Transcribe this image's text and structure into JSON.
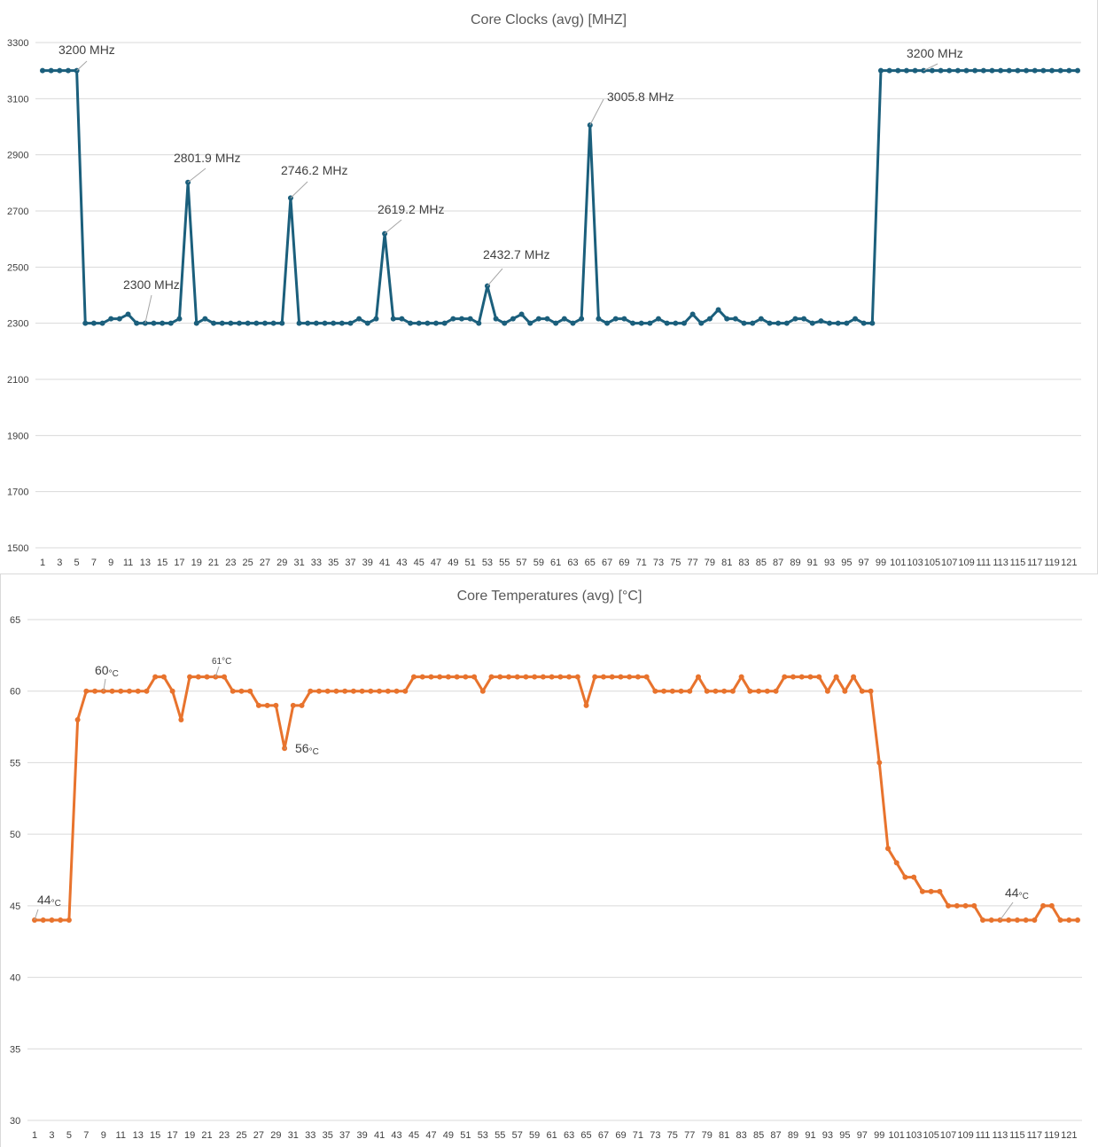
{
  "colors": {
    "clocks": "#1b5f7c",
    "temps": "#e8732d"
  },
  "chart_data": [
    {
      "type": "line",
      "title": "Core Clocks (avg) [MHZ]",
      "xlabel": "",
      "ylabel": "",
      "ylim": [
        1500,
        3300
      ],
      "yticks": [
        "3300",
        "3100",
        "2900",
        "2700",
        "2500",
        "2300",
        "2100",
        "1900",
        "1700",
        "1500"
      ],
      "x_tick_labels": [
        "1",
        "3",
        "5",
        "7",
        "9",
        "11",
        "13",
        "15",
        "17",
        "19",
        "21",
        "23",
        "25",
        "27",
        "29",
        "31",
        "33",
        "35",
        "37",
        "39",
        "41",
        "43",
        "45",
        "47",
        "49",
        "51",
        "53",
        "55",
        "57",
        "59",
        "61",
        "63",
        "65",
        "67",
        "69",
        "71",
        "73",
        "75",
        "77",
        "79",
        "81",
        "83",
        "85",
        "87",
        "89",
        "91",
        "93",
        "95",
        "97",
        "99",
        "101",
        "103",
        "105",
        "107",
        "109",
        "111",
        "113",
        "115",
        "117",
        "119",
        "121"
      ],
      "x": [
        1,
        2,
        3,
        4,
        5,
        6,
        7,
        8,
        9,
        10,
        11,
        12,
        13,
        14,
        15,
        16,
        17,
        18,
        19,
        20,
        21,
        22,
        23,
        24,
        25,
        26,
        27,
        28,
        29,
        30,
        31,
        32,
        33,
        34,
        35,
        36,
        37,
        38,
        39,
        40,
        41,
        42,
        43,
        44,
        45,
        46,
        47,
        48,
        49,
        50,
        51,
        52,
        53,
        54,
        55,
        56,
        57,
        58,
        59,
        60,
        61,
        62,
        63,
        64,
        65,
        66,
        67,
        68,
        69,
        70,
        71,
        72,
        73,
        74,
        75,
        76,
        77,
        78,
        79,
        80,
        81,
        82,
        83,
        84,
        85,
        86,
        87,
        88,
        89,
        90,
        91,
        92,
        93,
        94,
        95,
        96,
        97,
        98,
        99,
        100,
        101,
        102,
        103,
        104,
        105,
        106,
        107,
        108,
        109,
        110,
        111,
        112,
        113,
        114,
        115,
        116,
        117,
        118,
        119,
        120,
        121,
        122
      ],
      "series": [
        {
          "values": [
            3200,
            3200,
            3200,
            3200,
            3200,
            2300,
            2300,
            2300,
            2316,
            2316,
            2332,
            2300,
            2300,
            2300,
            2300,
            2300,
            2316,
            2801.9,
            2300,
            2316,
            2300,
            2300,
            2300,
            2300,
            2300,
            2300,
            2300,
            2300,
            2300,
            2746.2,
            2300,
            2300,
            2300,
            2300,
            2300,
            2300,
            2300,
            2316,
            2300,
            2316,
            2619.2,
            2316,
            2316,
            2300,
            2300,
            2300,
            2300,
            2300,
            2316,
            2316,
            2316,
            2300,
            2432.7,
            2316,
            2300,
            2316,
            2332,
            2300,
            2316,
            2316,
            2300,
            2316,
            2300,
            2316,
            3005.8,
            2316,
            2300,
            2316,
            2316,
            2300,
            2300,
            2300,
            2316,
            2300,
            2300,
            2300,
            2332,
            2300,
            2316,
            2348,
            2316,
            2316,
            2300,
            2300,
            2316,
            2300,
            2300,
            2300,
            2316,
            2316,
            2300,
            2308,
            2300,
            2300,
            2300,
            2316,
            2300,
            2300,
            3200,
            3200,
            3200,
            3200,
            3200,
            3200,
            3200,
            3200,
            3200,
            3200,
            3200,
            3200,
            3200,
            3200,
            3200,
            3200,
            3200,
            3200,
            3200,
            3200,
            3200,
            3200,
            3200,
            3200
          ]
        }
      ],
      "annotations": [
        {
          "x": 5,
          "y": 3200,
          "text": "3200 MHz"
        },
        {
          "x": 18,
          "y": 2801.9,
          "text": "2801.9 MHz"
        },
        {
          "x": 30,
          "y": 2746.2,
          "text": "2746.2 MHz"
        },
        {
          "x": 41,
          "y": 2619.2,
          "text": "2619.2 MHz"
        },
        {
          "x": 53,
          "y": 2432.7,
          "text": "2432.7 MHz"
        },
        {
          "x": 65,
          "y": 3005.8,
          "text": "3005.8 MHz"
        },
        {
          "x": 13,
          "y": 2300,
          "text": "2300 MHz"
        },
        {
          "x": 104,
          "y": 3200,
          "text": "3200 MHz"
        }
      ],
      "grid": true,
      "legend": "none"
    },
    {
      "type": "line",
      "title": "Core Temperatures (avg) [°C]",
      "xlabel": "",
      "ylabel": "",
      "ylim": [
        30,
        65
      ],
      "yticks": [
        "65",
        "60",
        "55",
        "50",
        "45",
        "40",
        "35",
        "30"
      ],
      "x_tick_labels": [
        "1",
        "3",
        "5",
        "7",
        "9",
        "11",
        "13",
        "15",
        "17",
        "19",
        "21",
        "23",
        "25",
        "27",
        "29",
        "31",
        "33",
        "35",
        "37",
        "39",
        "41",
        "43",
        "45",
        "47",
        "49",
        "51",
        "53",
        "55",
        "57",
        "59",
        "61",
        "63",
        "65",
        "67",
        "69",
        "71",
        "73",
        "75",
        "77",
        "79",
        "81",
        "83",
        "85",
        "87",
        "89",
        "91",
        "93",
        "95",
        "97",
        "99",
        "101",
        "103",
        "105",
        "107",
        "109",
        "111",
        "113",
        "115",
        "117",
        "119",
        "121"
      ],
      "x": [
        1,
        2,
        3,
        4,
        5,
        6,
        7,
        8,
        9,
        10,
        11,
        12,
        13,
        14,
        15,
        16,
        17,
        18,
        19,
        20,
        21,
        22,
        23,
        24,
        25,
        26,
        27,
        28,
        29,
        30,
        31,
        32,
        33,
        34,
        35,
        36,
        37,
        38,
        39,
        40,
        41,
        42,
        43,
        44,
        45,
        46,
        47,
        48,
        49,
        50,
        51,
        52,
        53,
        54,
        55,
        56,
        57,
        58,
        59,
        60,
        61,
        62,
        63,
        64,
        65,
        66,
        67,
        68,
        69,
        70,
        71,
        72,
        73,
        74,
        75,
        76,
        77,
        78,
        79,
        80,
        81,
        82,
        83,
        84,
        85,
        86,
        87,
        88,
        89,
        90,
        91,
        92,
        93,
        94,
        95,
        96,
        97,
        98,
        99,
        100,
        101,
        102,
        103,
        104,
        105,
        106,
        107,
        108,
        109,
        110,
        111,
        112,
        113,
        114,
        115,
        116,
        117,
        118,
        119,
        120,
        121,
        122
      ],
      "series": [
        {
          "values": [
            44,
            44,
            44,
            44,
            44,
            58,
            60,
            60,
            60,
            60,
            60,
            60,
            60,
            60,
            61,
            61,
            60,
            58,
            61,
            61,
            61,
            61,
            61,
            60,
            60,
            60,
            59,
            59,
            59,
            56,
            59,
            59,
            60,
            60,
            60,
            60,
            60,
            60,
            60,
            60,
            60,
            60,
            60,
            60,
            61,
            61,
            61,
            61,
            61,
            61,
            61,
            61,
            60,
            61,
            61,
            61,
            61,
            61,
            61,
            61,
            61,
            61,
            61,
            61,
            59,
            61,
            61,
            61,
            61,
            61,
            61,
            61,
            60,
            60,
            60,
            60,
            60,
            61,
            60,
            60,
            60,
            60,
            61,
            60,
            60,
            60,
            60,
            61,
            61,
            61,
            61,
            61,
            60,
            61,
            60,
            61,
            60,
            60,
            55,
            49,
            48,
            47,
            47,
            46,
            46,
            46,
            45,
            45,
            45,
            45,
            44,
            44,
            44,
            44,
            44,
            44,
            44,
            45,
            45,
            44,
            44,
            44
          ]
        }
      ],
      "annotations": [
        {
          "x": 1,
          "y": 44,
          "value": "44",
          "unit": "°C",
          "size": "normal"
        },
        {
          "x": 9,
          "y": 60,
          "value": "60",
          "unit": "°C",
          "size": "normal"
        },
        {
          "x": 22,
          "y": 61,
          "value": "61",
          "unit": "°C",
          "size": "small"
        },
        {
          "x": 30,
          "y": 56,
          "value": "56",
          "unit": "°C",
          "size": "normal"
        },
        {
          "x": 113,
          "y": 44,
          "value": "44",
          "unit": "°C",
          "size": "normal"
        }
      ],
      "grid": true,
      "legend": "none"
    }
  ]
}
